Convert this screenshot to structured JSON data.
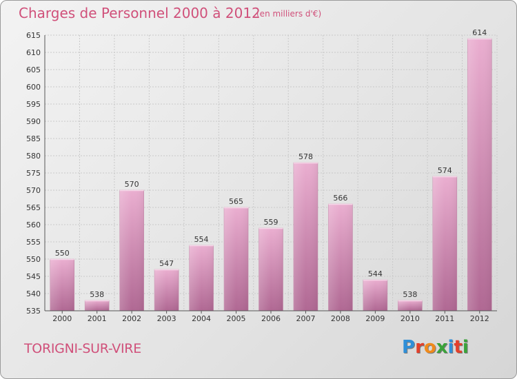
{
  "title": "Charges de Personnel 2000 à 2012",
  "subtitle": "(en milliers d'€)",
  "place": "TORIGNI-SUR-VIRE",
  "logo": {
    "letters": [
      "P",
      "r",
      "o",
      "x",
      "i",
      "t",
      "i"
    ],
    "colors": [
      "#2f8fd8",
      "#e3402b",
      "#f08a1c",
      "#3aa33a",
      "#2f8fd8",
      "#e3402b",
      "#3aa33a"
    ]
  },
  "colors": {
    "bar_light": "#e8a9cc",
    "bar_dark": "#b46894",
    "title": "#d0507a"
  },
  "chart_data": {
    "type": "bar",
    "categories": [
      "2000",
      "2001",
      "2002",
      "2003",
      "2004",
      "2005",
      "2006",
      "2007",
      "2008",
      "2009",
      "2010",
      "2011",
      "2012"
    ],
    "values": [
      550,
      538,
      570,
      547,
      554,
      565,
      559,
      578,
      566,
      544,
      538,
      574,
      614
    ],
    "ylim": [
      535,
      615
    ],
    "yticks": [
      535,
      540,
      545,
      550,
      555,
      560,
      565,
      570,
      575,
      580,
      585,
      590,
      595,
      600,
      605,
      610,
      615
    ],
    "grid": true
  }
}
